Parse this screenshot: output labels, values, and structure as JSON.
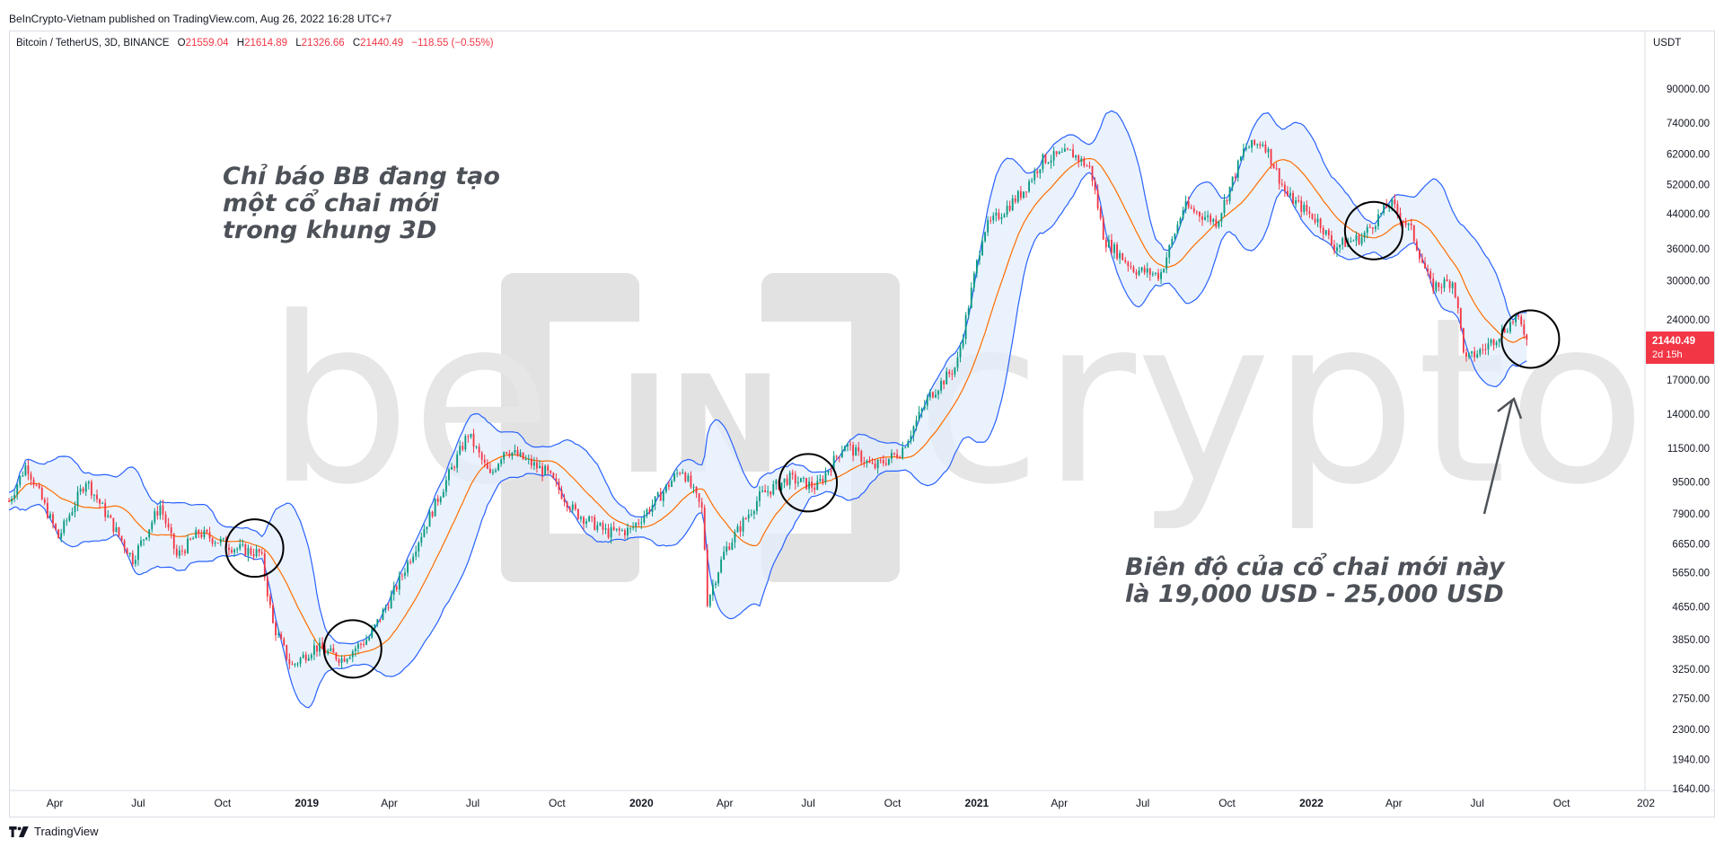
{
  "header": {
    "publisher": "BeInCrypto-Vietnam published on TradingView.com, Aug 26, 2022 16:28 UTC+7"
  },
  "symbol": {
    "name": "Bitcoin / TetherUS, 3D, BINANCE",
    "open_label": "O",
    "open": "21559.04",
    "high_label": "H",
    "high": "21614.89",
    "low_label": "L",
    "low": "21326.66",
    "close_label": "C",
    "close": "21440.49",
    "change": "−118.55 (−0.55%)"
  },
  "annotations": {
    "left": [
      "Chỉ báo BB đang tạo",
      "một cổ chai mới",
      "trong khung 3D"
    ],
    "right": [
      "Biên độ của cổ chai mới này",
      "là 19,000 USD - 25,000 USD"
    ]
  },
  "watermark": {
    "text_left": "be",
    "text_center": "IN",
    "text_right": "crypto"
  },
  "footer": {
    "brand": "TradingView"
  },
  "colors": {
    "up": "#089981",
    "down": "#f23645",
    "band_line": "#2962ff",
    "band_fill": "#e3eefc",
    "basis": "#ff6d00",
    "circle": "#000000",
    "arrow": "#4d5158"
  },
  "chart_data": {
    "type": "candlestick",
    "title": "",
    "ylabel": "USDT",
    "scale": "log",
    "ylim": [
      1640,
      110000
    ],
    "xlim": [
      "2018-02-10",
      "2022-12-31"
    ],
    "y_ticks": [
      90000,
      74000,
      62000,
      52000,
      44000,
      36000,
      30000,
      24000,
      17000,
      14000,
      11500,
      9500,
      7900,
      6650,
      5650,
      4650,
      3850,
      3250,
      2750,
      2300,
      1940,
      1640
    ],
    "y_tick_labels": [
      "90000.00",
      "74000.00",
      "62000.00",
      "52000.00",
      "44000.00",
      "36000.00",
      "30000.00",
      "24000.00",
      "17000.00",
      "14000.00",
      "11500.00",
      "9500.00",
      "7900.00",
      "6650.00",
      "5650.00",
      "4650.00",
      "3850.00",
      "3250.00",
      "2750.00",
      "2300.00",
      "1940.00",
      "1640.00"
    ],
    "x_ticks": [
      "2018-04-01",
      "2018-07-01",
      "2018-10-01",
      "2019-01-01",
      "2019-04-01",
      "2019-07-01",
      "2019-10-01",
      "2020-01-01",
      "2020-04-01",
      "2020-07-01",
      "2020-10-01",
      "2021-01-01",
      "2021-04-01",
      "2021-07-01",
      "2021-10-01",
      "2022-01-01",
      "2022-04-01",
      "2022-07-01",
      "2022-10-01",
      "2023-01-01"
    ],
    "x_tick_labels": [
      "Apr",
      "Jul",
      "Oct",
      "2019",
      "Apr",
      "Jul",
      "Oct",
      "2020",
      "Apr",
      "Jul",
      "Oct",
      "2021",
      "Apr",
      "Jul",
      "Oct",
      "2022",
      "Apr",
      "Jul",
      "Oct",
      "202"
    ],
    "last_price_label": "21440.49",
    "countdown_label": "2d 15h",
    "price_path": [
      [
        "2018-02-10",
        8500
      ],
      [
        "2018-03-01",
        10500
      ],
      [
        "2018-04-05",
        6900
      ],
      [
        "2018-05-05",
        9600
      ],
      [
        "2018-06-25",
        6100
      ],
      [
        "2018-07-25",
        8300
      ],
      [
        "2018-08-12",
        6200
      ],
      [
        "2018-09-05",
        7100
      ],
      [
        "2018-10-15",
        6500
      ],
      [
        "2018-11-12",
        6300
      ],
      [
        "2018-11-25",
        4200
      ],
      [
        "2018-12-15",
        3300
      ],
      [
        "2019-01-10",
        3700
      ],
      [
        "2019-02-08",
        3450
      ],
      [
        "2019-03-10",
        3900
      ],
      [
        "2019-04-05",
        5000
      ],
      [
        "2019-05-15",
        7800
      ],
      [
        "2019-06-26",
        12500
      ],
      [
        "2019-07-20",
        9800
      ],
      [
        "2019-08-05",
        11500
      ],
      [
        "2019-09-20",
        10000
      ],
      [
        "2019-10-20",
        8000
      ],
      [
        "2019-11-25",
        7100
      ],
      [
        "2019-12-20",
        7200
      ],
      [
        "2020-01-20",
        8700
      ],
      [
        "2020-02-14",
        10300
      ],
      [
        "2020-03-08",
        8000
      ],
      [
        "2020-03-13",
        4800
      ],
      [
        "2020-04-01",
        6400
      ],
      [
        "2020-05-10",
        8800
      ],
      [
        "2020-06-10",
        9700
      ],
      [
        "2020-07-10",
        9200
      ],
      [
        "2020-08-10",
        11800
      ],
      [
        "2020-09-10",
        10300
      ],
      [
        "2020-10-10",
        11300
      ],
      [
        "2020-11-10",
        15500
      ],
      [
        "2020-12-10",
        18500
      ],
      [
        "2021-01-08",
        40000
      ],
      [
        "2021-02-20",
        50000
      ],
      [
        "2021-03-14",
        60000
      ],
      [
        "2021-04-14",
        62500
      ],
      [
        "2021-05-05",
        57000
      ],
      [
        "2021-05-20",
        38000
      ],
      [
        "2021-06-22",
        32000
      ],
      [
        "2021-07-20",
        31000
      ],
      [
        "2021-08-15",
        46000
      ],
      [
        "2021-09-20",
        42000
      ],
      [
        "2021-10-20",
        64000
      ],
      [
        "2021-11-10",
        66500
      ],
      [
        "2021-12-05",
        49000
      ],
      [
        "2022-01-10",
        42000
      ],
      [
        "2022-01-25",
        36500
      ],
      [
        "2022-02-25",
        38500
      ],
      [
        "2022-03-28",
        47000
      ],
      [
        "2022-04-20",
        40000
      ],
      [
        "2022-05-12",
        29000
      ],
      [
        "2022-06-05",
        30000
      ],
      [
        "2022-06-18",
        19000
      ],
      [
        "2022-07-10",
        20500
      ],
      [
        "2022-08-12",
        24300
      ],
      [
        "2022-08-26",
        21440
      ]
    ]
  }
}
